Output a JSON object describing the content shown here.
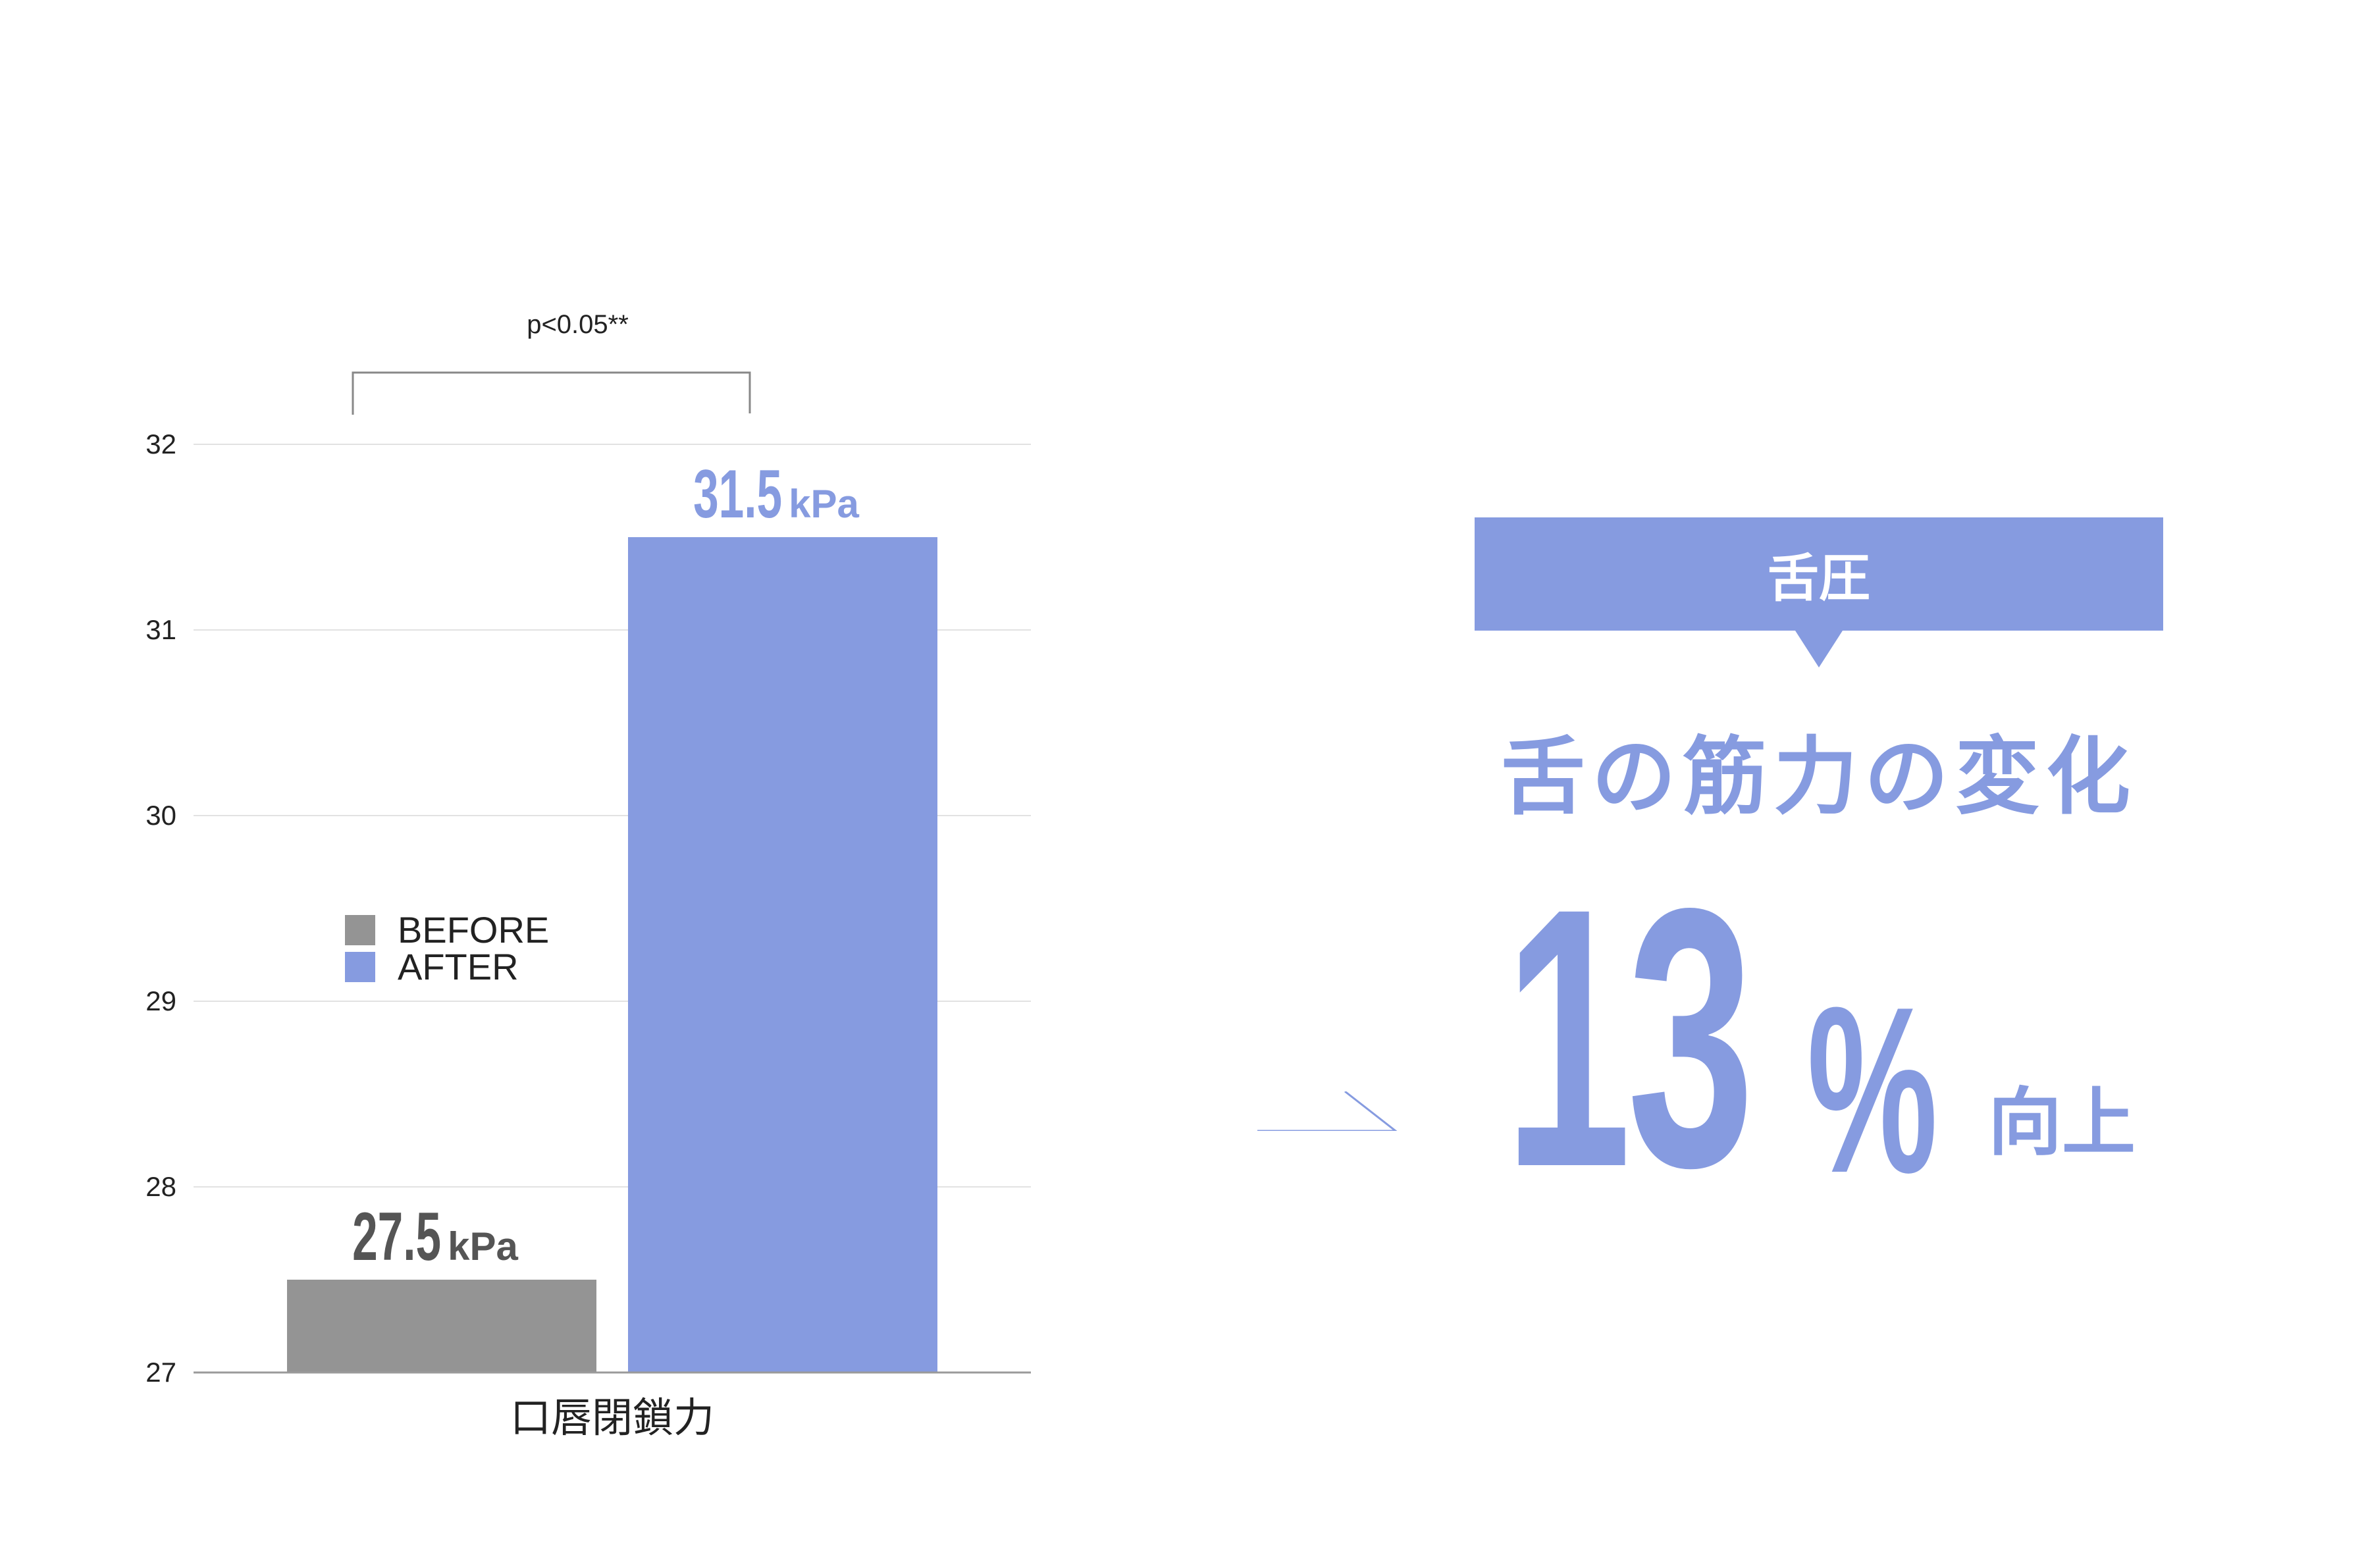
{
  "chart_data": {
    "type": "bar",
    "categories": [
      "口唇閉鎖力"
    ],
    "series": [
      {
        "name": "BEFORE",
        "values": [
          27.5
        ],
        "color": "#949494",
        "label_value": "27.5",
        "label_unit": "kPa",
        "label_color": "#555555"
      },
      {
        "name": "AFTER",
        "values": [
          31.5
        ],
        "color": "#869be0",
        "label_value": "31.5",
        "label_unit": "kPa",
        "label_color": "#869be0"
      }
    ],
    "ylim": [
      27,
      32
    ],
    "yticks": [
      "27",
      "28",
      "29",
      "30",
      "31",
      "32"
    ],
    "grid": true,
    "legend_placement": "left-middle",
    "significance": "p<0.05**"
  },
  "summary": {
    "tag": "舌圧",
    "title": "舌の筋力の変化",
    "stat_number": "13",
    "stat_percent": "%",
    "stat_suffix": "向上",
    "accent_color": "#869be0"
  }
}
